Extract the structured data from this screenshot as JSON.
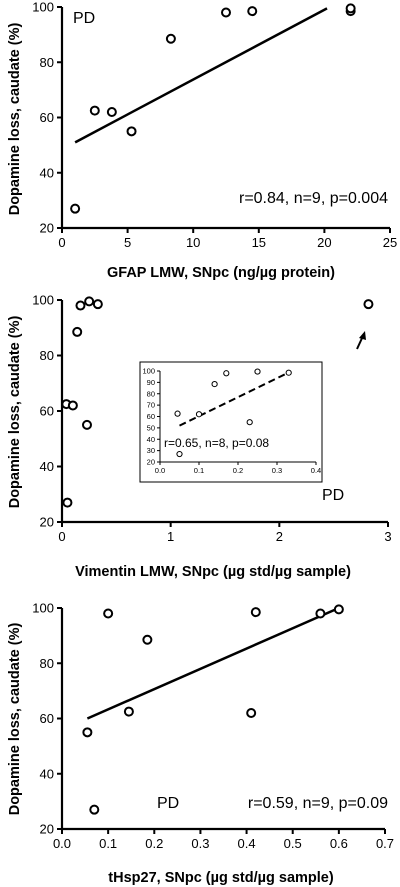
{
  "chart_data": [
    {
      "type": "scatter",
      "panel_label": "PD",
      "xlabel": "GFAP LMW, SNpc (ng/µg protein)",
      "ylabel": "Dopamine loss, caudate (%)",
      "xlim": [
        0,
        25
      ],
      "ylim": [
        20,
        100
      ],
      "xticks": [
        "0",
        "5",
        "10",
        "15",
        "20",
        "25"
      ],
      "yticks": [
        "20",
        "40",
        "60",
        "80",
        "100"
      ],
      "annotation": "r=0.84, n=9, p=0.004",
      "points": [
        {
          "x": 1.0,
          "y": 27
        },
        {
          "x": 2.5,
          "y": 62.5
        },
        {
          "x": 3.8,
          "y": 62
        },
        {
          "x": 5.3,
          "y": 55
        },
        {
          "x": 8.3,
          "y": 88.5
        },
        {
          "x": 12.5,
          "y": 98
        },
        {
          "x": 14.5,
          "y": 98.5
        },
        {
          "x": 22.0,
          "y": 98.5
        },
        {
          "x": 22.0,
          "y": 99.5
        }
      ],
      "fit_line": {
        "x": [
          1.0,
          20.2
        ],
        "y": [
          51,
          99.5
        ],
        "style": "solid"
      }
    },
    {
      "type": "scatter",
      "panel_label": "PD",
      "xlabel": "Vimentin LMW, SNpc (µg std/µg sample)",
      "ylabel": "Dopamine loss, caudate (%)",
      "xlim": [
        0,
        3
      ],
      "ylim": [
        20,
        100
      ],
      "xticks": [
        "0",
        "1",
        "2",
        "3"
      ],
      "yticks": [
        "20",
        "40",
        "60",
        "80",
        "100"
      ],
      "annotation": "",
      "arrow_marks_point": {
        "x": 2.82,
        "y": 98.5
      },
      "points": [
        {
          "x": 0.05,
          "y": 27
        },
        {
          "x": 0.04,
          "y": 62.5
        },
        {
          "x": 0.1,
          "y": 62
        },
        {
          "x": 0.23,
          "y": 55
        },
        {
          "x": 0.14,
          "y": 88.5
        },
        {
          "x": 0.17,
          "y": 98
        },
        {
          "x": 0.25,
          "y": 99.5
        },
        {
          "x": 0.33,
          "y": 98.5
        },
        {
          "x": 2.82,
          "y": 98.5
        }
      ],
      "inset": {
        "type": "scatter",
        "xlim": [
          0,
          0.4
        ],
        "ylim": [
          20,
          100
        ],
        "xticks": [
          "0.0",
          "0.1",
          "0.2",
          "0.3",
          "0.4"
        ],
        "yticks": [
          "20",
          "30",
          "40",
          "50",
          "60",
          "70",
          "80",
          "90",
          "100"
        ],
        "annotation": "r=0.65, n=8, p=0.08",
        "points": [
          {
            "x": 0.05,
            "y": 27
          },
          {
            "x": 0.045,
            "y": 62.5
          },
          {
            "x": 0.1,
            "y": 62
          },
          {
            "x": 0.23,
            "y": 55
          },
          {
            "x": 0.14,
            "y": 88.5
          },
          {
            "x": 0.17,
            "y": 98
          },
          {
            "x": 0.25,
            "y": 99.5
          },
          {
            "x": 0.33,
            "y": 98.5
          }
        ],
        "fit_line": {
          "x": [
            0.05,
            0.32
          ],
          "y": [
            52,
            97
          ],
          "style": "dashed"
        }
      }
    },
    {
      "type": "scatter",
      "panel_label": "PD",
      "xlabel": "tHsp27, SNpc (µg std/µg sample)",
      "ylabel": "Dopamine loss, caudate (%)",
      "xlim": [
        0,
        0.7
      ],
      "ylim": [
        20,
        100
      ],
      "xticks": [
        "0.0",
        "0.1",
        "0.2",
        "0.3",
        "0.4",
        "0.5",
        "0.6",
        "0.7"
      ],
      "yticks": [
        "20",
        "40",
        "60",
        "80",
        "100"
      ],
      "annotation": "r=0.59, n=9, p=0.09",
      "points": [
        {
          "x": 0.07,
          "y": 27
        },
        {
          "x": 0.055,
          "y": 55
        },
        {
          "x": 0.145,
          "y": 62.5
        },
        {
          "x": 0.41,
          "y": 62
        },
        {
          "x": 0.185,
          "y": 88.5
        },
        {
          "x": 0.1,
          "y": 98
        },
        {
          "x": 0.42,
          "y": 98.5
        },
        {
          "x": 0.56,
          "y": 98
        },
        {
          "x": 0.6,
          "y": 99.5
        }
      ],
      "fit_line": {
        "x": [
          0.055,
          0.6
        ],
        "y": [
          60,
          100
        ],
        "style": "solid"
      }
    }
  ]
}
